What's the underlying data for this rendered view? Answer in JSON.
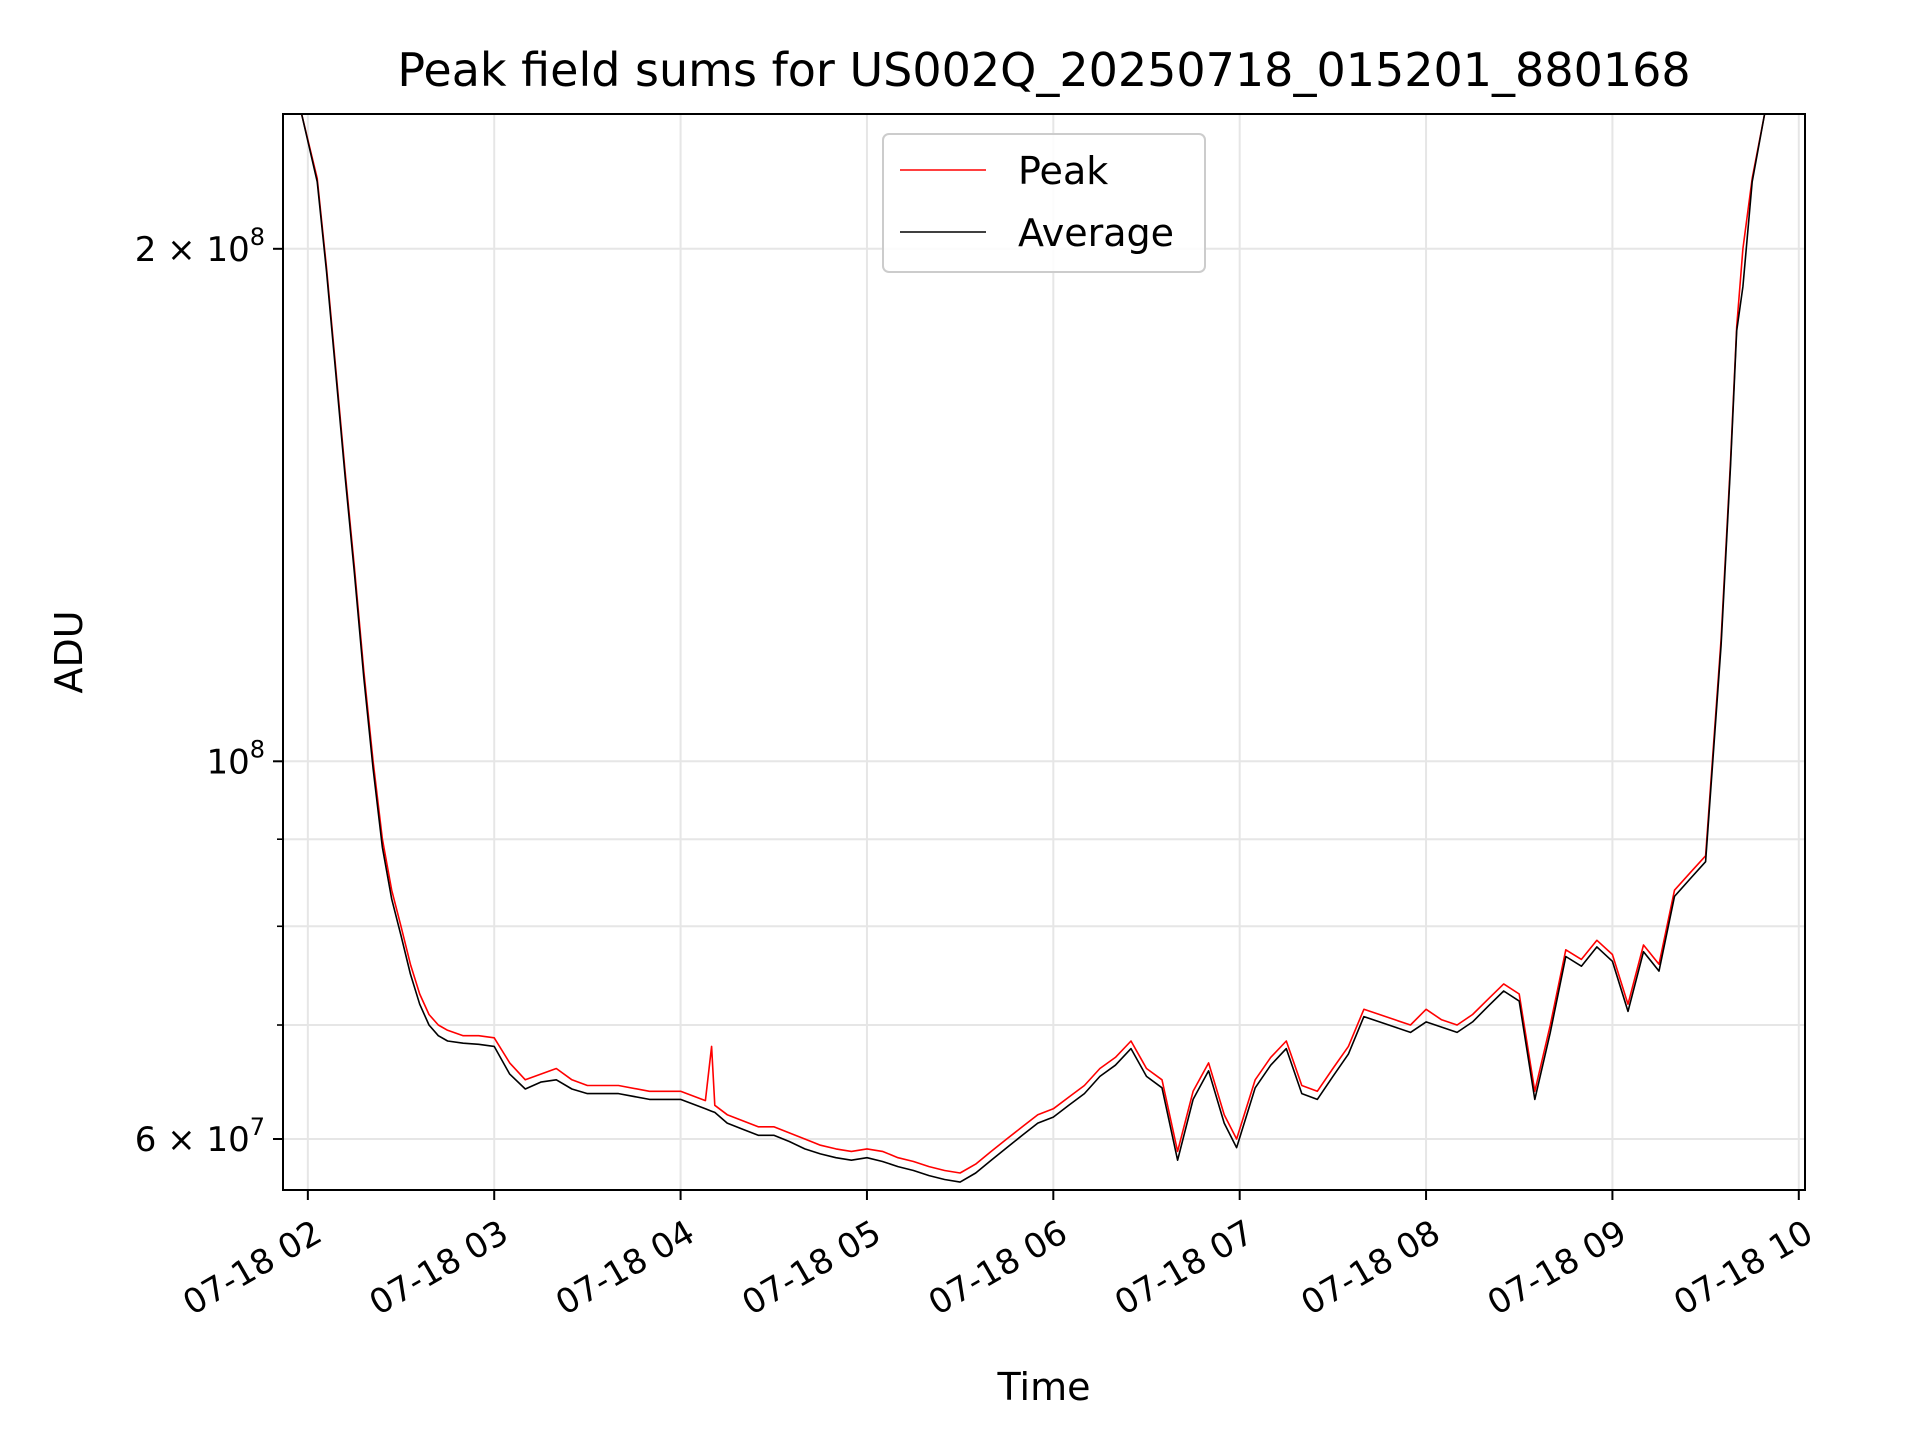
{
  "chart_data": {
    "type": "line",
    "title": "Peak field sums for US002Q_20250718_015201_880168",
    "xlabel": "Time",
    "ylabel": "ADU",
    "yscale": "log",
    "ylim": [
      56000000,
      240000000
    ],
    "xlim": [
      "07-18 01:52",
      "07-18 10:02"
    ],
    "grid": true,
    "legend_position": "top-center",
    "x_ticks": [
      "07-18 02",
      "07-18 03",
      "07-18 04",
      "07-18 05",
      "07-18 06",
      "07-18 07",
      "07-18 08",
      "07-18 09",
      "07-18 10"
    ],
    "y_ticks": [
      {
        "value": 60000000,
        "mantissa": "6",
        "exponent": "7"
      },
      {
        "value": 100000000,
        "mantissa": "",
        "exponent": "8"
      },
      {
        "value": 200000000,
        "mantissa": "2",
        "exponent": "8"
      }
    ],
    "y_minor_ticks": [
      70000000,
      80000000,
      90000000
    ],
    "series": [
      {
        "name": "Peak",
        "color": "#ff0000",
        "x": [
          "07-18 01:58",
          "07-18 02:03",
          "07-18 02:06",
          "07-18 02:09",
          "07-18 02:12",
          "07-18 02:15",
          "07-18 02:18",
          "07-18 02:21",
          "07-18 02:24",
          "07-18 02:27",
          "07-18 02:30",
          "07-18 02:33",
          "07-18 02:36",
          "07-18 02:39",
          "07-18 02:42",
          "07-18 02:45",
          "07-18 02:50",
          "07-18 02:55",
          "07-18 03:00",
          "07-18 03:05",
          "07-18 03:10",
          "07-18 03:15",
          "07-18 03:20",
          "07-18 03:25",
          "07-18 03:30",
          "07-18 03:40",
          "07-18 03:50",
          "07-18 04:00",
          "07-18 04:08",
          "07-18 04:10",
          "07-18 04:11",
          "07-18 04:15",
          "07-18 04:20",
          "07-18 04:25",
          "07-18 04:30",
          "07-18 04:35",
          "07-18 04:40",
          "07-18 04:45",
          "07-18 04:50",
          "07-18 04:55",
          "07-18 05:00",
          "07-18 05:05",
          "07-18 05:10",
          "07-18 05:15",
          "07-18 05:20",
          "07-18 05:25",
          "07-18 05:30",
          "07-18 05:35",
          "07-18 05:40",
          "07-18 05:45",
          "07-18 05:50",
          "07-18 05:55",
          "07-18 06:00",
          "07-18 06:05",
          "07-18 06:10",
          "07-18 06:15",
          "07-18 06:20",
          "07-18 06:25",
          "07-18 06:30",
          "07-18 06:35",
          "07-18 06:40",
          "07-18 06:45",
          "07-18 06:50",
          "07-18 06:55",
          "07-18 06:59",
          "07-18 07:05",
          "07-18 07:10",
          "07-18 07:15",
          "07-18 07:20",
          "07-18 07:25",
          "07-18 07:30",
          "07-18 07:35",
          "07-18 07:40",
          "07-18 07:45",
          "07-18 07:50",
          "07-18 07:55",
          "07-18 08:00",
          "07-18 08:05",
          "07-18 08:10",
          "07-18 08:15",
          "07-18 08:20",
          "07-18 08:25",
          "07-18 08:30",
          "07-18 08:35",
          "07-18 08:40",
          "07-18 08:45",
          "07-18 08:50",
          "07-18 08:55",
          "07-18 09:00",
          "07-18 09:05",
          "07-18 09:10",
          "07-18 09:15",
          "07-18 09:20",
          "07-18 09:25",
          "07-18 09:30",
          "07-18 09:35",
          "07-18 09:38",
          "07-18 09:40",
          "07-18 09:42",
          "07-18 09:45",
          "07-18 09:49"
        ],
        "values": [
          240000000,
          220000000,
          195000000,
          170000000,
          148000000,
          130000000,
          113000000,
          100000000,
          90000000,
          84000000,
          80000000,
          76000000,
          73000000,
          71000000,
          70000000,
          69500000,
          69000000,
          69000000,
          68800000,
          66500000,
          65000000,
          65500000,
          66000000,
          65000000,
          64500000,
          64500000,
          64000000,
          64000000,
          63200000,
          68000000,
          62800000,
          62000000,
          61500000,
          61000000,
          61000000,
          60500000,
          60000000,
          59500000,
          59200000,
          59000000,
          59200000,
          59000000,
          58500000,
          58200000,
          57800000,
          57500000,
          57300000,
          58000000,
          59000000,
          60000000,
          61000000,
          62000000,
          62500000,
          63500000,
          64500000,
          66000000,
          67000000,
          68500000,
          66000000,
          65000000,
          59000000,
          64000000,
          66500000,
          62000000,
          60000000,
          65000000,
          67000000,
          68500000,
          64500000,
          64000000,
          66000000,
          68000000,
          71500000,
          71000000,
          70500000,
          70000000,
          71500000,
          70500000,
          70000000,
          71000000,
          72500000,
          74000000,
          73000000,
          64000000,
          70000000,
          77500000,
          76500000,
          78500000,
          77000000,
          72000000,
          78000000,
          76000000,
          84000000,
          86000000,
          88000000,
          118000000,
          150000000,
          180000000,
          200000000,
          220000000,
          240000000
        ]
      },
      {
        "name": "Average",
        "color": "#000000",
        "x": [
          "07-18 01:58",
          "07-18 02:03",
          "07-18 02:06",
          "07-18 02:09",
          "07-18 02:12",
          "07-18 02:15",
          "07-18 02:18",
          "07-18 02:21",
          "07-18 02:24",
          "07-18 02:27",
          "07-18 02:30",
          "07-18 02:33",
          "07-18 02:36",
          "07-18 02:39",
          "07-18 02:42",
          "07-18 02:45",
          "07-18 02:50",
          "07-18 02:55",
          "07-18 03:00",
          "07-18 03:05",
          "07-18 03:10",
          "07-18 03:15",
          "07-18 03:20",
          "07-18 03:25",
          "07-18 03:30",
          "07-18 03:40",
          "07-18 03:50",
          "07-18 04:00",
          "07-18 04:08",
          "07-18 04:10",
          "07-18 04:11",
          "07-18 04:15",
          "07-18 04:20",
          "07-18 04:25",
          "07-18 04:30",
          "07-18 04:35",
          "07-18 04:40",
          "07-18 04:45",
          "07-18 04:50",
          "07-18 04:55",
          "07-18 05:00",
          "07-18 05:05",
          "07-18 05:10",
          "07-18 05:15",
          "07-18 05:20",
          "07-18 05:25",
          "07-18 05:30",
          "07-18 05:35",
          "07-18 05:40",
          "07-18 05:45",
          "07-18 05:50",
          "07-18 05:55",
          "07-18 06:00",
          "07-18 06:05",
          "07-18 06:10",
          "07-18 06:15",
          "07-18 06:20",
          "07-18 06:25",
          "07-18 06:30",
          "07-18 06:35",
          "07-18 06:40",
          "07-18 06:45",
          "07-18 06:50",
          "07-18 06:55",
          "07-18 06:59",
          "07-18 07:05",
          "07-18 07:10",
          "07-18 07:15",
          "07-18 07:20",
          "07-18 07:25",
          "07-18 07:30",
          "07-18 07:35",
          "07-18 07:40",
          "07-18 07:45",
          "07-18 07:50",
          "07-18 07:55",
          "07-18 08:00",
          "07-18 08:05",
          "07-18 08:10",
          "07-18 08:15",
          "07-18 08:20",
          "07-18 08:25",
          "07-18 08:30",
          "07-18 08:35",
          "07-18 08:40",
          "07-18 08:45",
          "07-18 08:50",
          "07-18 08:55",
          "07-18 09:00",
          "07-18 09:05",
          "07-18 09:10",
          "07-18 09:15",
          "07-18 09:20",
          "07-18 09:25",
          "07-18 09:30",
          "07-18 09:35",
          "07-18 09:38",
          "07-18 09:40",
          "07-18 09:42",
          "07-18 09:45",
          "07-18 09:49"
        ],
        "values": [
          240000000,
          219000000,
          194000000,
          169000000,
          147000000,
          129000000,
          112000000,
          99000000,
          89000000,
          83000000,
          79000000,
          75000000,
          72000000,
          70000000,
          69000000,
          68500000,
          68300000,
          68200000,
          68000000,
          65500000,
          64200000,
          64800000,
          65000000,
          64200000,
          63800000,
          63800000,
          63300000,
          63300000,
          62500000,
          62300000,
          62200000,
          61300000,
          60800000,
          60300000,
          60300000,
          59800000,
          59200000,
          58800000,
          58500000,
          58300000,
          58500000,
          58200000,
          57800000,
          57500000,
          57100000,
          56800000,
          56600000,
          57300000,
          58300000,
          59300000,
          60300000,
          61300000,
          61800000,
          62800000,
          63800000,
          65300000,
          66300000,
          67800000,
          65300000,
          64300000,
          58300000,
          63300000,
          65800000,
          61300000,
          59300000,
          64300000,
          66300000,
          67800000,
          63800000,
          63300000,
          65300000,
          67300000,
          70800000,
          70300000,
          69800000,
          69300000,
          70300000,
          69800000,
          69300000,
          70300000,
          71800000,
          73300000,
          72300000,
          63300000,
          69300000,
          76800000,
          75800000,
          77800000,
          76300000,
          71300000,
          77300000,
          75300000,
          83300000,
          85300000,
          87300000,
          117000000,
          149000000,
          179000000,
          190000000,
          219000000,
          240000000
        ]
      }
    ]
  }
}
